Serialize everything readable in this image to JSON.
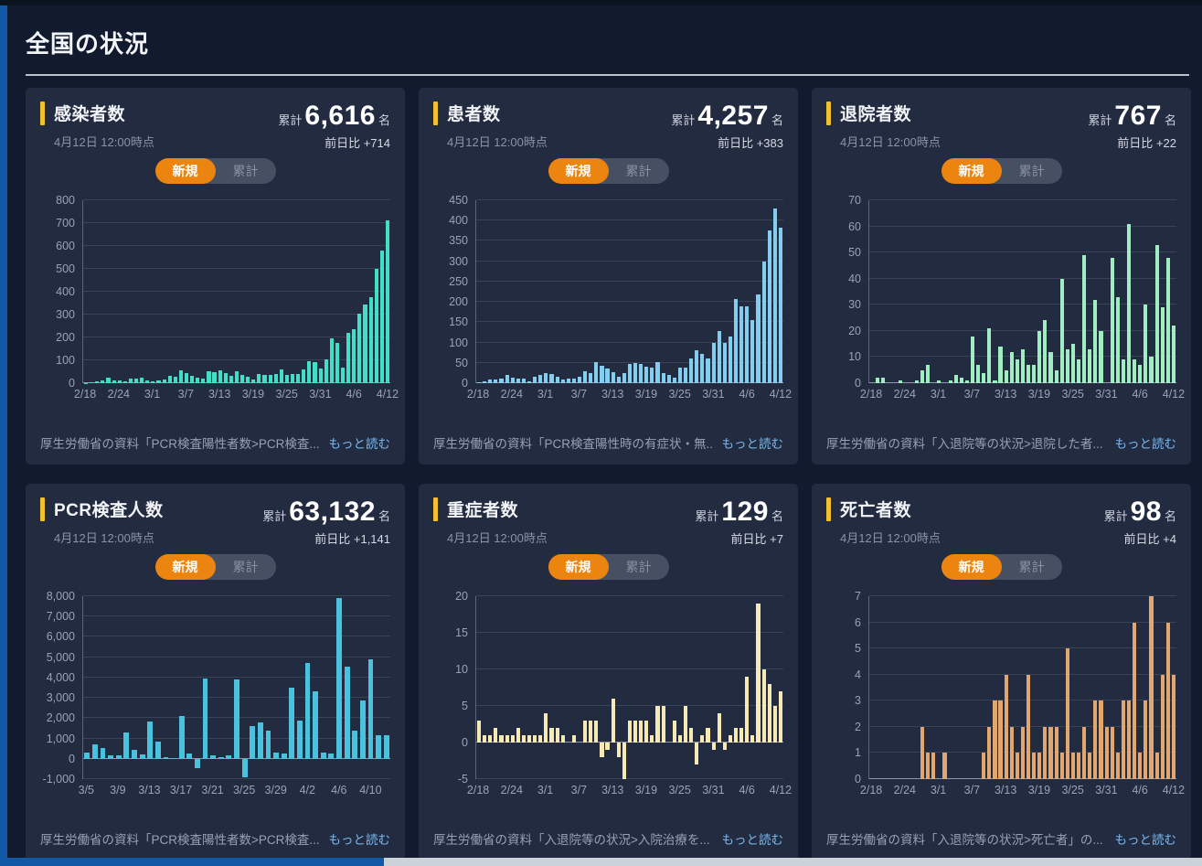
{
  "page": {
    "title": "全国の状況"
  },
  "toggle": {
    "new_label": "新規",
    "cumulative_label": "累計"
  },
  "labels": {
    "cumulative_prefix": "累計",
    "unit": "名",
    "diff_prefix": "前日比",
    "read_more": "もっと読む"
  },
  "colors": {
    "accent_yellow": "#f3c12b",
    "toggle_active_orange": "#ec8410",
    "left_edge_blue": "#1158a7",
    "card_bg": "#232b41",
    "page_bg": "#121b2d",
    "link_blue": "#79b9ef"
  },
  "cards": [
    {
      "title": "感染者数",
      "date": "4月12日 12:00時点",
      "total": "6,616",
      "diff": "+714",
      "source": "厚生労働省の資料「PCR検査陽性者数>PCR検査..."
    },
    {
      "title": "患者数",
      "date": "4月12日 12:00時点",
      "total": "4,257",
      "diff": "+383",
      "source": "厚生労働省の資料「PCR検査陽性時の有症状・無..."
    },
    {
      "title": "退院者数",
      "date": "4月12日 12:00時点",
      "total": "767",
      "diff": "+22",
      "source": "厚生労働省の資料「入退院等の状況>退院した者..."
    },
    {
      "title": "PCR検査人数",
      "date": "4月12日 12:00時点",
      "total": "63,132",
      "diff": "+1,141",
      "source": "厚生労働省の資料「PCR検査陽性者数>PCR検査..."
    },
    {
      "title": "重症者数",
      "date": "4月12日 12:00時点",
      "total": "129",
      "diff": "+7",
      "source": "厚生労働省の資料「入退院等の状況>入院治療を..."
    },
    {
      "title": "死亡者数",
      "date": "4月12日 12:00時点",
      "total": "98",
      "diff": "+4",
      "source": "厚生労働省の資料「入退院等の状況>死亡者」の..."
    }
  ],
  "axes": {
    "dates_feb18_apr12": [
      "2/18",
      "2/19",
      "2/20",
      "2/21",
      "2/22",
      "2/23",
      "2/24",
      "2/25",
      "2/26",
      "2/27",
      "2/28",
      "2/29",
      "3/1",
      "3/2",
      "3/3",
      "3/4",
      "3/5",
      "3/6",
      "3/7",
      "3/8",
      "3/9",
      "3/10",
      "3/11",
      "3/12",
      "3/13",
      "3/14",
      "3/15",
      "3/16",
      "3/17",
      "3/18",
      "3/19",
      "3/20",
      "3/21",
      "3/22",
      "3/23",
      "3/24",
      "3/25",
      "3/26",
      "3/27",
      "3/28",
      "3/29",
      "3/30",
      "3/31",
      "4/1",
      "4/2",
      "4/3",
      "4/4",
      "4/5",
      "4/6",
      "4/7",
      "4/8",
      "4/9",
      "4/10",
      "4/11",
      "4/12"
    ],
    "dates_mar5_apr12": [
      "3/5",
      "3/6",
      "3/7",
      "3/8",
      "3/9",
      "3/10",
      "3/11",
      "3/12",
      "3/13",
      "3/14",
      "3/15",
      "3/16",
      "3/17",
      "3/18",
      "3/19",
      "3/20",
      "3/21",
      "3/22",
      "3/23",
      "3/24",
      "3/25",
      "3/26",
      "3/27",
      "3/28",
      "3/29",
      "3/30",
      "3/31",
      "4/1",
      "4/2",
      "4/3",
      "4/4",
      "4/5",
      "4/6",
      "4/7",
      "4/8",
      "4/9",
      "4/10",
      "4/11",
      "4/12"
    ]
  },
  "chart_data": [
    {
      "type": "bar",
      "title": "感染者数（新規・日別）",
      "color": "#41e0c6",
      "categories_key": "dates_feb18_apr12",
      "values": [
        1,
        4,
        9,
        11,
        25,
        12,
        13,
        9,
        19,
        22,
        24,
        12,
        8,
        14,
        15,
        31,
        30,
        58,
        46,
        32,
        26,
        21,
        51,
        50,
        56,
        44,
        34,
        54,
        38,
        29,
        15,
        40,
        35,
        37,
        39,
        61,
        35,
        40,
        42,
        60,
        95,
        91,
        66,
        105,
        195,
        175,
        70,
        220,
        235,
        305,
        345,
        375,
        500,
        580,
        714
      ],
      "ylim": [
        0,
        800
      ],
      "yticks": [
        0,
        100,
        200,
        300,
        400,
        500,
        600,
        700,
        800
      ],
      "ytick_labels": [
        "0",
        "100",
        "200",
        "300",
        "400",
        "500",
        "600",
        "700",
        "800"
      ],
      "x_tick_indices": [
        0,
        6,
        12,
        18,
        24,
        30,
        36,
        42,
        48,
        54
      ],
      "x_tick_labels": [
        "2/18",
        "2/24",
        "3/1",
        "3/7",
        "3/13",
        "3/19",
        "3/25",
        "3/31",
        "4/6",
        "4/12"
      ],
      "grid": true,
      "legend": "none"
    },
    {
      "type": "bar",
      "title": "患者数（新規・日別）",
      "color": "#83ceef",
      "categories_key": "dates_feb18_apr12",
      "values": [
        3,
        4,
        9,
        10,
        12,
        20,
        14,
        11,
        12,
        5,
        15,
        20,
        24,
        22,
        15,
        8,
        12,
        12,
        15,
        30,
        25,
        52,
        42,
        35,
        28,
        15,
        25,
        47,
        50,
        48,
        40,
        38,
        52,
        25,
        20,
        14,
        38,
        38,
        60,
        80,
        72,
        60,
        100,
        128,
        100,
        115,
        208,
        188,
        190,
        155,
        218,
        300,
        375,
        430,
        383
      ],
      "ylim": [
        0,
        450
      ],
      "yticks": [
        0,
        50,
        100,
        150,
        200,
        250,
        300,
        350,
        400,
        450
      ],
      "ytick_labels": [
        "0",
        "50",
        "100",
        "150",
        "200",
        "250",
        "300",
        "350",
        "400",
        "450"
      ],
      "x_tick_indices": [
        0,
        6,
        12,
        18,
        24,
        30,
        36,
        42,
        48,
        54
      ],
      "x_tick_labels": [
        "2/18",
        "2/24",
        "3/1",
        "3/7",
        "3/13",
        "3/19",
        "3/25",
        "3/31",
        "4/6",
        "4/12"
      ],
      "grid": true,
      "legend": "none"
    },
    {
      "type": "bar",
      "title": "退院者数（新規・日別）",
      "color": "#9fedc0",
      "categories_key": "dates_feb18_apr12",
      "values": [
        0,
        2,
        2,
        0,
        0,
        1,
        0,
        0,
        1,
        5,
        7,
        0,
        1,
        0,
        1,
        3,
        2,
        1,
        18,
        7,
        4,
        21,
        1,
        14,
        5,
        12,
        9,
        13,
        7,
        7,
        20,
        24,
        12,
        5,
        40,
        13,
        15,
        9,
        49,
        13,
        32,
        20,
        0,
        48,
        33,
        9,
        61,
        9,
        7,
        30,
        10,
        53,
        29,
        48,
        22
      ],
      "ylim": [
        0,
        70
      ],
      "yticks": [
        0,
        10,
        20,
        30,
        40,
        50,
        60,
        70
      ],
      "ytick_labels": [
        "0",
        "10",
        "20",
        "30",
        "40",
        "50",
        "60",
        "70"
      ],
      "x_tick_indices": [
        0,
        6,
        12,
        18,
        24,
        30,
        36,
        42,
        48,
        54
      ],
      "x_tick_labels": [
        "2/18",
        "2/24",
        "3/1",
        "3/7",
        "3/13",
        "3/19",
        "3/25",
        "3/31",
        "4/6",
        "4/12"
      ],
      "grid": true,
      "legend": "none"
    },
    {
      "type": "bar",
      "title": "PCR検査人数（新規・日別）",
      "color": "#4ac1dd",
      "categories_key": "dates_mar5_apr12",
      "values": [
        300,
        700,
        550,
        150,
        150,
        1300,
        450,
        200,
        1850,
        850,
        100,
        50,
        2100,
        250,
        -450,
        3950,
        150,
        100,
        150,
        3900,
        -900,
        1600,
        1800,
        1400,
        300,
        250,
        3500,
        1900,
        4700,
        3300,
        300,
        250,
        7900,
        4550,
        1400,
        2850,
        4900,
        1150,
        1141
      ],
      "ylim": [
        -1000,
        8000
      ],
      "yticks": [
        -1000,
        0,
        1000,
        2000,
        3000,
        4000,
        5000,
        6000,
        7000,
        8000
      ],
      "ytick_labels": [
        "-1,000",
        "0",
        "1,000",
        "2,000",
        "3,000",
        "4,000",
        "5,000",
        "6,000",
        "7,000",
        "8,000"
      ],
      "x_tick_indices": [
        0,
        4,
        8,
        12,
        16,
        20,
        24,
        28,
        32,
        36
      ],
      "x_tick_labels": [
        "3/5",
        "3/9",
        "3/13",
        "3/17",
        "3/21",
        "3/25",
        "3/29",
        "4/2",
        "4/6",
        "4/10"
      ],
      "grid": true,
      "legend": "none"
    },
    {
      "type": "bar",
      "title": "重症者数（新規・日別）",
      "color": "#f6e9b4",
      "categories_key": "dates_feb18_apr12",
      "values": [
        3,
        1,
        1,
        2,
        1,
        1,
        1,
        2,
        1,
        1,
        1,
        1,
        4,
        2,
        2,
        1,
        0,
        1,
        0,
        3,
        3,
        3,
        -2,
        -1,
        6,
        -2,
        -5,
        3,
        3,
        3,
        3,
        1,
        5,
        5,
        0,
        3,
        1,
        5,
        2,
        -3,
        1,
        2,
        -1,
        4,
        -1,
        1,
        2,
        2,
        9,
        1,
        19,
        10,
        8,
        5,
        7
      ],
      "ylim": [
        -5,
        20
      ],
      "yticks": [
        -5,
        0,
        5,
        10,
        15,
        20
      ],
      "ytick_labels": [
        "-5",
        "0",
        "5",
        "10",
        "15",
        "20"
      ],
      "x_tick_indices": [
        0,
        6,
        12,
        18,
        24,
        30,
        36,
        42,
        48,
        54
      ],
      "x_tick_labels": [
        "2/18",
        "2/24",
        "3/1",
        "3/7",
        "3/13",
        "3/19",
        "3/25",
        "3/31",
        "4/6",
        "4/12"
      ],
      "grid": true,
      "legend": "none"
    },
    {
      "type": "bar",
      "title": "死亡者数（新規・日別）",
      "color": "#e1a76f",
      "categories_key": "dates_feb18_apr12",
      "values": [
        0,
        0,
        0,
        0,
        0,
        0,
        0,
        0,
        0,
        2,
        1,
        1,
        0,
        1,
        0,
        0,
        0,
        0,
        0,
        0,
        1,
        2,
        3,
        3,
        4,
        2,
        1,
        2,
        4,
        1,
        1,
        2,
        2,
        2,
        1,
        5,
        1,
        1,
        2,
        1,
        3,
        3,
        2,
        2,
        1,
        3,
        3,
        6,
        1,
        3,
        7,
        1,
        4,
        6,
        4
      ],
      "ylim": [
        0,
        7
      ],
      "yticks": [
        0,
        1,
        2,
        3,
        4,
        5,
        6,
        7
      ],
      "ytick_labels": [
        "0",
        "1",
        "2",
        "3",
        "4",
        "5",
        "6",
        "7"
      ],
      "x_tick_indices": [
        0,
        6,
        12,
        18,
        24,
        30,
        36,
        42,
        48,
        54
      ],
      "x_tick_labels": [
        "2/18",
        "2/24",
        "3/1",
        "3/7",
        "3/13",
        "3/19",
        "3/25",
        "3/31",
        "4/6",
        "4/12"
      ],
      "grid": true,
      "legend": "none"
    }
  ]
}
